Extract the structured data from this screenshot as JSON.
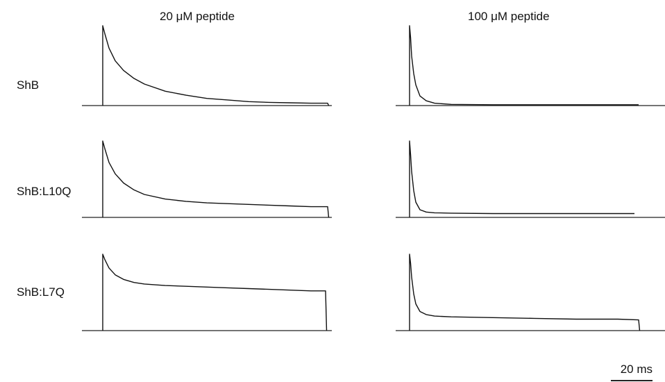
{
  "column_titles": [
    "20 μM peptide",
    "100 μM peptide"
  ],
  "row_labels": [
    "ShB",
    "ShB:L10Q",
    "ShB:L7Q"
  ],
  "scale_bar": {
    "label": "20 ms"
  },
  "chart_data": [
    {
      "type": "line",
      "row": "ShB",
      "condition": "20 μM peptide",
      "x": [
        0,
        1,
        3,
        6,
        10,
        15,
        20,
        30,
        40,
        50,
        60,
        70,
        80,
        90,
        100,
        108,
        108.5
      ],
      "y": [
        1.0,
        0.9,
        0.72,
        0.56,
        0.44,
        0.34,
        0.27,
        0.18,
        0.13,
        0.09,
        0.07,
        0.05,
        0.04,
        0.035,
        0.03,
        0.03,
        0
      ]
    },
    {
      "type": "line",
      "row": "ShB",
      "condition": "100 μM peptide",
      "x": [
        0,
        0.5,
        1,
        2,
        3,
        5,
        8,
        12,
        20,
        40,
        60,
        80,
        100,
        110
      ],
      "y": [
        1.0,
        0.85,
        0.62,
        0.4,
        0.26,
        0.12,
        0.06,
        0.03,
        0.015,
        0.01,
        0.01,
        0.01,
        0.01,
        0.01
      ]
    },
    {
      "type": "line",
      "row": "ShB:L10Q",
      "condition": "20 μM peptide",
      "x": [
        0,
        1,
        3,
        6,
        10,
        15,
        20,
        30,
        40,
        50,
        60,
        70,
        80,
        90,
        100,
        108,
        108.5
      ],
      "y": [
        1.0,
        0.9,
        0.72,
        0.57,
        0.45,
        0.36,
        0.3,
        0.24,
        0.21,
        0.19,
        0.18,
        0.17,
        0.16,
        0.15,
        0.14,
        0.14,
        0
      ]
    },
    {
      "type": "line",
      "row": "ShB:L10Q",
      "condition": "100 μM peptide",
      "x": [
        0,
        0.5,
        1,
        2,
        3,
        5,
        8,
        12,
        20,
        40,
        60,
        80,
        100,
        108
      ],
      "y": [
        1.0,
        0.82,
        0.6,
        0.35,
        0.2,
        0.1,
        0.07,
        0.06,
        0.055,
        0.05,
        0.05,
        0.05,
        0.05,
        0.05
      ]
    },
    {
      "type": "line",
      "row": "ShB:L7Q",
      "condition": "20 μM peptide",
      "x": [
        0,
        1,
        3,
        6,
        10,
        15,
        20,
        30,
        40,
        50,
        60,
        70,
        80,
        90,
        100,
        107,
        107.5
      ],
      "y": [
        1.0,
        0.93,
        0.82,
        0.73,
        0.67,
        0.63,
        0.61,
        0.59,
        0.58,
        0.57,
        0.56,
        0.55,
        0.54,
        0.53,
        0.52,
        0.52,
        0
      ]
    },
    {
      "type": "line",
      "row": "ShB:L7Q",
      "condition": "100 μM peptide",
      "x": [
        0,
        0.5,
        1,
        2,
        3,
        5,
        8,
        12,
        20,
        40,
        60,
        80,
        100,
        110,
        110.5
      ],
      "y": [
        1.0,
        0.88,
        0.7,
        0.48,
        0.35,
        0.25,
        0.21,
        0.19,
        0.18,
        0.17,
        0.16,
        0.15,
        0.15,
        0.14,
        0
      ]
    }
  ]
}
